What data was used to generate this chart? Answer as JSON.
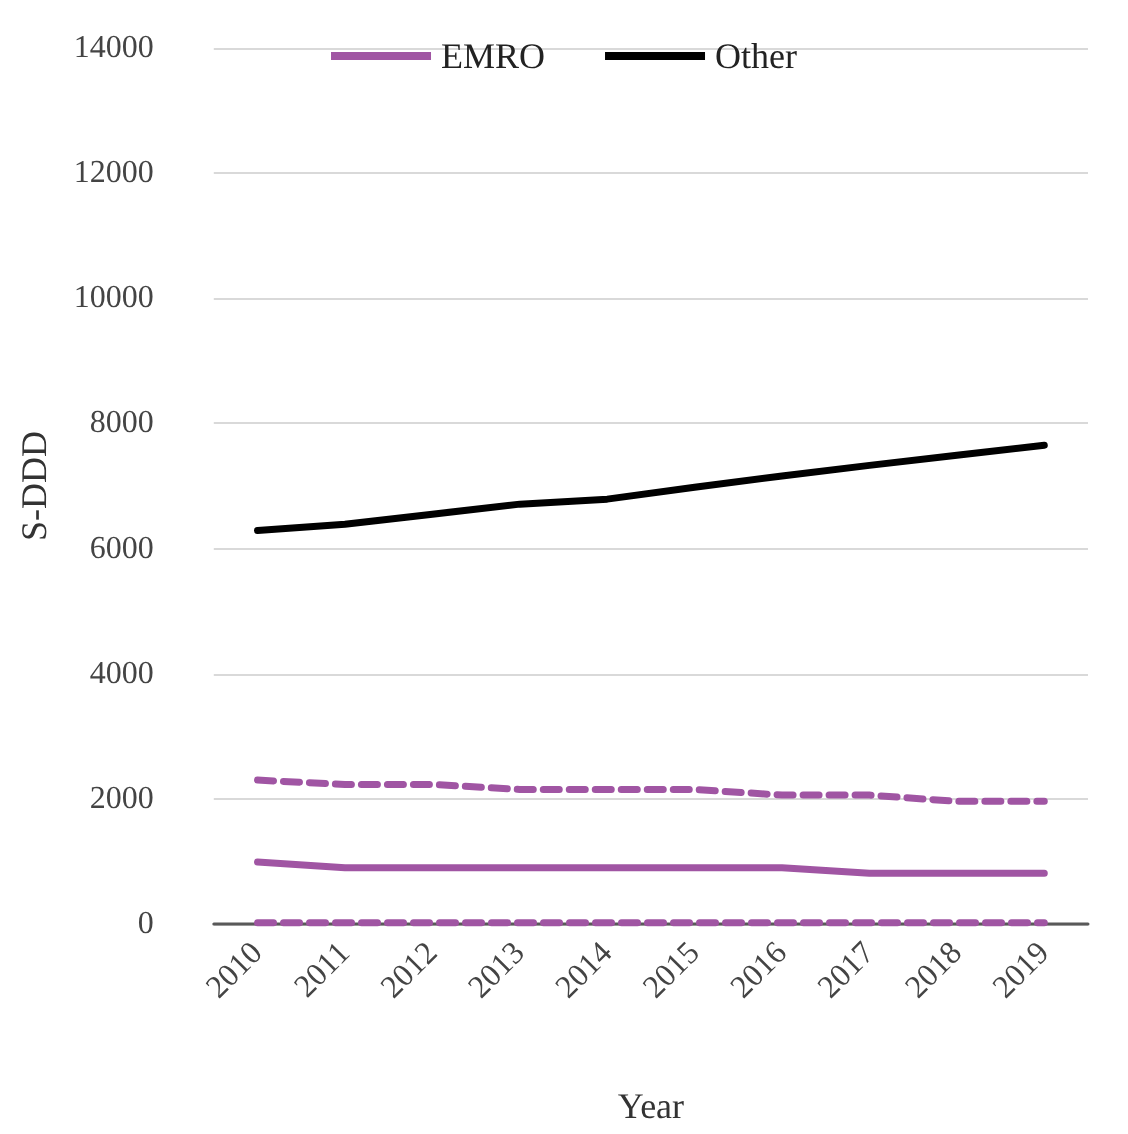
{
  "chart_data": {
    "type": "line",
    "xlabel": "Year",
    "ylabel": "S-DDD",
    "categories": [
      "2010",
      "2011",
      "2012",
      "2013",
      "2014",
      "2015",
      "2016",
      "2017",
      "2018",
      "2019"
    ],
    "series": [
      {
        "name": "EMRO",
        "color": "#a055a3",
        "line_style": "solid",
        "values": [
          990,
          900,
          900,
          900,
          900,
          900,
          900,
          810,
          810,
          810
        ]
      },
      {
        "name": "Other",
        "color": "#000000",
        "line_style": "solid",
        "values": [
          6290,
          6390,
          6550,
          6710,
          6790,
          6980,
          7160,
          7330,
          7490,
          7650
        ]
      },
      {
        "color": "#a055a3",
        "line_style": "dashed",
        "values": [
          2300,
          2230,
          2230,
          2150,
          2150,
          2150,
          2060,
          2060,
          1960,
          1960
        ]
      },
      {
        "color": "#a055a3",
        "line_style": "dashed",
        "values": [
          20,
          20,
          20,
          20,
          20,
          20,
          20,
          20,
          20,
          20
        ]
      }
    ],
    "ylim": [
      0,
      14000
    ],
    "yticks": [
      0,
      2000,
      4000,
      6000,
      8000,
      10000,
      12000,
      14000
    ],
    "grid": "y",
    "legend": "top",
    "marker": "none"
  }
}
